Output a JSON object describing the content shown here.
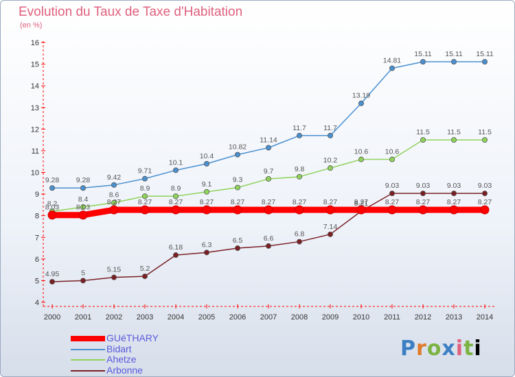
{
  "chart_data": {
    "type": "line",
    "title": "Evolution du Taux de Taxe d'Habitation",
    "unit_label": "(en %)",
    "x": [
      "2000",
      "2001",
      "2002",
      "2003",
      "2004",
      "2005",
      "2006",
      "2007",
      "2008",
      "2009",
      "2010",
      "2011",
      "2012",
      "2013",
      "2014"
    ],
    "ylim": [
      4,
      16
    ],
    "yticks": [
      4,
      5,
      6,
      7,
      8,
      9,
      10,
      11,
      12,
      13,
      14,
      15,
      16
    ],
    "grid": false,
    "legend_position": "bottom-left",
    "series": [
      {
        "name": "GUéTHARY",
        "color": "#ff0000",
        "values": [
          8.03,
          8.03,
          8.27,
          8.27,
          8.27,
          8.27,
          8.27,
          8.27,
          8.27,
          8.27,
          8.27,
          8.27,
          8.27,
          8.27,
          8.27
        ],
        "labels": [
          "8.03",
          "8.03",
          "8.27",
          "8.27",
          "8.27",
          "8.27",
          "8.27",
          "8.27",
          "8.27",
          "8.27",
          "8.27",
          "8.27",
          "8.27",
          "8.27",
          "8.27"
        ]
      },
      {
        "name": "Bidart",
        "color": "#4a90d0",
        "values": [
          9.28,
          9.28,
          9.42,
          9.71,
          10.1,
          10.4,
          10.82,
          11.14,
          11.7,
          11.7,
          13.19,
          14.81,
          15.11,
          15.11,
          15.11
        ],
        "labels": [
          "9.28",
          "9.28",
          "9.42",
          "9.71",
          "10.1",
          "10.4",
          "10.82",
          "11.14",
          "11.7",
          "11.7",
          "13.19",
          "14.81",
          "15.11",
          "15.11",
          "15.11"
        ]
      },
      {
        "name": "Ahetze",
        "color": "#8fd35a",
        "values": [
          8.2,
          8.4,
          8.6,
          8.9,
          8.9,
          9.1,
          9.3,
          9.7,
          9.8,
          10.2,
          10.6,
          10.6,
          11.5,
          11.5,
          11.5
        ],
        "labels": [
          "8.2",
          "8.4",
          "8.6",
          "8.9",
          "8.9",
          "9.1",
          "9.3",
          "9.7",
          "9.8",
          "10.2",
          "10.6",
          "10.6",
          "11.5",
          "11.5",
          "11.5"
        ]
      },
      {
        "name": "Arbonne",
        "color": "#7a1f24",
        "values": [
          4.95,
          5,
          5.15,
          5.2,
          6.18,
          6.3,
          6.5,
          6.6,
          6.8,
          7.14,
          8.21,
          9.03,
          9.03,
          9.03,
          9.03
        ],
        "labels": [
          "4.95",
          "5",
          "5.15",
          "5.2",
          "6.18",
          "6.3",
          "6.5",
          "6.6",
          "6.8",
          "7.14",
          "8.21",
          "9.03",
          "9.03",
          "9.03",
          "9.03"
        ]
      }
    ]
  },
  "logo": {
    "letters": [
      "P",
      "r",
      "o",
      "x",
      "i",
      "t",
      "i"
    ]
  }
}
